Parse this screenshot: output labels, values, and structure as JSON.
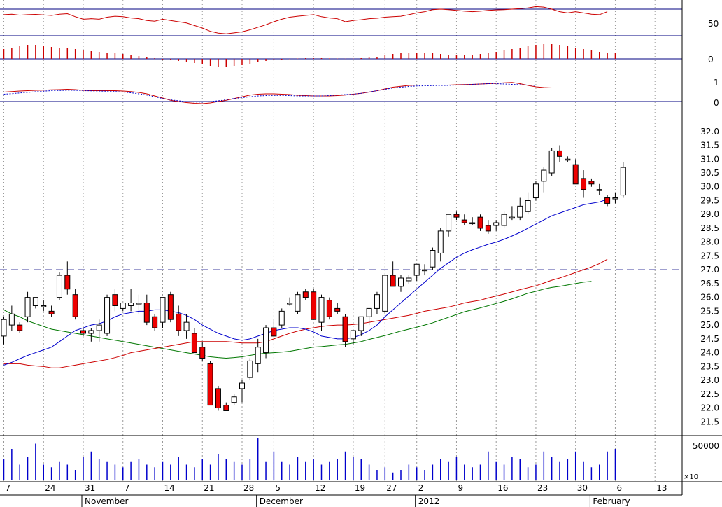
{
  "chart_data": {
    "type": "candlestick",
    "title": "",
    "colors": {
      "up_fill": "#ffffff",
      "down_fill": "#ee0000",
      "candle_outline": "#000000",
      "ma_short": "#0000cc",
      "ma_mid": "#cc0000",
      "ma_long": "#007700",
      "volume": "#0000cc",
      "indicator_line": "#cc0000",
      "panel_border": "#000080",
      "grid": "#999999"
    },
    "x_axis": {
      "day_labels": [
        {
          "i": 0,
          "label": "7"
        },
        {
          "i": 5,
          "label": "24"
        },
        {
          "i": 10,
          "label": "31"
        },
        {
          "i": 15,
          "label": "7"
        },
        {
          "i": 20,
          "label": "14"
        },
        {
          "i": 25,
          "label": "21"
        },
        {
          "i": 30,
          "label": "28"
        },
        {
          "i": 34,
          "label": "5"
        },
        {
          "i": 39,
          "label": "12"
        },
        {
          "i": 44,
          "label": "19"
        },
        {
          "i": 48,
          "label": "27"
        },
        {
          "i": 52,
          "label": "2"
        },
        {
          "i": 57,
          "label": "9"
        },
        {
          "i": 62,
          "label": "16"
        },
        {
          "i": 67,
          "label": "23"
        },
        {
          "i": 72,
          "label": "30"
        },
        {
          "i": 77,
          "label": "6"
        },
        {
          "i": 82,
          "label": "13"
        }
      ],
      "month_labels": [
        {
          "i": 10,
          "label": "November"
        },
        {
          "i": 32,
          "label": "December"
        },
        {
          "i": 52,
          "label": "2012"
        },
        {
          "i": 74,
          "label": "February"
        }
      ]
    },
    "price_panel": {
      "ylim": [
        21.0,
        32.4
      ],
      "y_ticks": [
        "32.0",
        "31.5",
        "31.0",
        "30.5",
        "30.0",
        "29.5",
        "29.0",
        "28.5",
        "28.0",
        "27.5",
        "27.0",
        "26.5",
        "26.0",
        "25.5",
        "25.0",
        "24.5",
        "24.0",
        "23.5",
        "23.0",
        "22.5",
        "22.0",
        "21.5"
      ],
      "reference_level": 27.0,
      "candles": [
        [
          24.6,
          25.3,
          24.3,
          25.2
        ],
        [
          25.0,
          25.7,
          24.8,
          25.4
        ],
        [
          25.0,
          25.1,
          24.7,
          24.8
        ],
        [
          25.3,
          26.2,
          25.1,
          26.0
        ],
        [
          25.7,
          26.0,
          25.6,
          26.0
        ],
        [
          25.7,
          25.9,
          25.5,
          25.7
        ],
        [
          25.5,
          25.7,
          25.3,
          25.4
        ],
        [
          26.0,
          26.9,
          25.9,
          26.8
        ],
        [
          26.8,
          27.3,
          26.1,
          26.3
        ],
        [
          26.1,
          26.3,
          25.2,
          25.3
        ],
        [
          24.8,
          24.9,
          24.6,
          24.7
        ],
        [
          24.7,
          24.9,
          24.4,
          24.8
        ],
        [
          24.8,
          25.2,
          24.4,
          25.0
        ],
        [
          24.7,
          26.1,
          24.6,
          26.0
        ],
        [
          26.1,
          26.3,
          25.5,
          25.7
        ],
        [
          25.6,
          25.8,
          25.5,
          25.8
        ],
        [
          25.7,
          26.3,
          25.5,
          25.8
        ],
        [
          25.8,
          26.1,
          25.4,
          25.8
        ],
        [
          25.8,
          26.1,
          25.0,
          25.1
        ],
        [
          25.3,
          25.4,
          24.8,
          24.9
        ],
        [
          25.1,
          26.0,
          24.9,
          26.0
        ],
        [
          26.1,
          26.2,
          25.1,
          25.2
        ],
        [
          25.4,
          25.7,
          24.6,
          24.8
        ],
        [
          24.8,
          25.4,
          24.5,
          25.1
        ],
        [
          24.7,
          24.9,
          24.0,
          24.0
        ],
        [
          24.2,
          24.4,
          23.7,
          23.8
        ],
        [
          23.6,
          23.7,
          22.1,
          22.1
        ],
        [
          22.7,
          22.8,
          21.9,
          22.0
        ],
        [
          22.1,
          22.2,
          21.9,
          21.9
        ],
        [
          22.2,
          22.5,
          22.1,
          22.4
        ],
        [
          22.7,
          23.0,
          22.2,
          22.9
        ],
        [
          23.1,
          23.8,
          23.0,
          23.7
        ],
        [
          23.6,
          24.5,
          23.3,
          24.2
        ],
        [
          24.0,
          25.0,
          23.8,
          24.9
        ],
        [
          24.9,
          25.2,
          24.6,
          24.6
        ],
        [
          25.0,
          25.6,
          24.9,
          25.5
        ],
        [
          25.8,
          26.0,
          25.7,
          25.8
        ],
        [
          25.5,
          26.2,
          25.4,
          26.1
        ],
        [
          26.2,
          26.3,
          25.9,
          26.0
        ],
        [
          26.2,
          26.3,
          25.2,
          25.2
        ],
        [
          25.1,
          26.1,
          24.8,
          26.0
        ],
        [
          25.9,
          26.0,
          25.2,
          25.3
        ],
        [
          25.6,
          25.8,
          25.4,
          25.5
        ],
        [
          25.3,
          25.4,
          24.2,
          24.4
        ],
        [
          24.5,
          24.8,
          24.3,
          24.8
        ],
        [
          24.8,
          25.3,
          24.6,
          25.3
        ],
        [
          25.3,
          25.6,
          25.0,
          25.6
        ],
        [
          25.6,
          26.2,
          25.4,
          26.1
        ],
        [
          25.5,
          26.8,
          25.4,
          26.8
        ],
        [
          26.8,
          27.3,
          26.4,
          26.4
        ],
        [
          26.4,
          26.8,
          26.2,
          26.7
        ],
        [
          26.6,
          26.8,
          26.5,
          26.7
        ],
        [
          26.8,
          27.2,
          26.6,
          27.2
        ],
        [
          27.0,
          27.2,
          26.8,
          27.0
        ],
        [
          27.1,
          27.8,
          27.0,
          27.7
        ],
        [
          27.6,
          28.5,
          27.3,
          28.4
        ],
        [
          28.4,
          29.0,
          28.2,
          29.0
        ],
        [
          29.0,
          29.1,
          28.8,
          28.9
        ],
        [
          28.8,
          29.0,
          28.6,
          28.7
        ],
        [
          28.7,
          28.9,
          28.6,
          28.7
        ],
        [
          28.9,
          29.0,
          28.4,
          28.5
        ],
        [
          28.6,
          28.8,
          28.3,
          28.4
        ],
        [
          28.6,
          28.8,
          28.4,
          28.7
        ],
        [
          28.6,
          29.1,
          28.5,
          29.0
        ],
        [
          28.9,
          29.3,
          28.8,
          28.9
        ],
        [
          28.9,
          29.6,
          28.8,
          29.3
        ],
        [
          29.1,
          29.8,
          29.0,
          29.5
        ],
        [
          29.6,
          30.2,
          29.5,
          30.1
        ],
        [
          30.2,
          30.7,
          29.8,
          30.6
        ],
        [
          30.5,
          31.4,
          30.4,
          31.3
        ],
        [
          31.3,
          31.5,
          30.9,
          31.1
        ],
        [
          31.0,
          31.1,
          30.9,
          31.0
        ],
        [
          30.8,
          31.0,
          30.1,
          30.1
        ],
        [
          30.3,
          30.6,
          29.6,
          29.9
        ],
        [
          30.2,
          30.3,
          30.0,
          30.1
        ],
        [
          29.9,
          30.1,
          29.7,
          29.9
        ],
        [
          29.6,
          29.7,
          29.3,
          29.4
        ],
        [
          29.6,
          29.8,
          29.4,
          29.6
        ],
        [
          29.7,
          30.9,
          29.6,
          30.7
        ]
      ],
      "ma_short": [
        23.55,
        23.65,
        23.78,
        23.9,
        24.0,
        24.1,
        24.2,
        24.4,
        24.6,
        24.8,
        24.9,
        25.0,
        25.05,
        25.15,
        25.3,
        25.4,
        25.45,
        25.5,
        25.5,
        25.55,
        25.55,
        25.5,
        25.45,
        25.35,
        25.2,
        25.0,
        24.85,
        24.7,
        24.6,
        24.5,
        24.45,
        24.5,
        24.6,
        24.7,
        24.8,
        24.85,
        24.9,
        24.9,
        24.85,
        24.75,
        24.6,
        24.55,
        24.5,
        24.5,
        24.55,
        24.65,
        24.8,
        25.0,
        25.3,
        25.55,
        25.8,
        26.05,
        26.3,
        26.55,
        26.8,
        27.05,
        27.25,
        27.45,
        27.6,
        27.72,
        27.82,
        27.92,
        28.0,
        28.1,
        28.22,
        28.35,
        28.5,
        28.65,
        28.8,
        28.95,
        29.05,
        29.15,
        29.25,
        29.35,
        29.4,
        29.45,
        29.55
      ],
      "ma_mid": [
        23.6,
        23.6,
        23.6,
        23.55,
        23.52,
        23.5,
        23.45,
        23.45,
        23.5,
        23.55,
        23.6,
        23.65,
        23.7,
        23.75,
        23.82,
        23.9,
        24.0,
        24.05,
        24.1,
        24.15,
        24.2,
        24.25,
        24.3,
        24.35,
        24.4,
        24.4,
        24.4,
        24.4,
        24.4,
        24.38,
        24.35,
        24.35,
        24.35,
        24.4,
        24.5,
        24.6,
        24.7,
        24.78,
        24.85,
        24.9,
        24.95,
        24.98,
        25.0,
        25.0,
        25.02,
        25.05,
        25.1,
        25.15,
        25.2,
        25.25,
        25.3,
        25.35,
        25.42,
        25.5,
        25.55,
        25.6,
        25.65,
        25.72,
        25.8,
        25.85,
        25.9,
        25.98,
        26.05,
        26.12,
        26.2,
        26.28,
        26.35,
        26.42,
        26.52,
        26.62,
        26.7,
        26.8,
        26.9,
        27.0,
        27.1,
        27.22,
        27.38
      ],
      "ma_long": [
        25.55,
        25.4,
        25.3,
        25.15,
        25.05,
        24.95,
        24.85,
        24.8,
        24.75,
        24.7,
        24.65,
        24.6,
        24.55,
        24.5,
        24.45,
        24.4,
        24.35,
        24.3,
        24.25,
        24.2,
        24.15,
        24.1,
        24.05,
        24.0,
        23.95,
        23.9,
        23.85,
        23.82,
        23.8,
        23.82,
        23.85,
        23.9,
        23.95,
        23.98,
        24.0,
        24.02,
        24.05,
        24.1,
        24.15,
        24.2,
        24.22,
        24.25,
        24.28,
        24.3,
        24.35,
        24.4,
        24.48,
        24.55,
        24.62,
        24.7,
        24.78,
        24.85,
        24.92,
        25.0,
        25.08,
        25.18,
        25.28,
        25.38,
        25.48,
        25.55,
        25.62,
        25.7,
        25.78,
        25.86,
        25.95,
        26.05,
        26.15,
        26.22,
        26.3,
        26.36,
        26.4,
        26.45,
        26.5,
        26.55,
        26.58
      ]
    },
    "volume_panel": {
      "y_label": "50000",
      "multiplier_label": "×10",
      "values": [
        40,
        60,
        30,
        45,
        70,
        30,
        25,
        35,
        30,
        20,
        45,
        55,
        40,
        35,
        30,
        25,
        35,
        40,
        30,
        25,
        35,
        30,
        45,
        30,
        25,
        40,
        30,
        50,
        40,
        35,
        30,
        40,
        80,
        35,
        55,
        35,
        30,
        45,
        35,
        40,
        30,
        35,
        40,
        55,
        45,
        40,
        30,
        20,
        25,
        15,
        20,
        30,
        25,
        20,
        30,
        40,
        35,
        45,
        30,
        25,
        30,
        55,
        35,
        30,
        45,
        40,
        25,
        30,
        55,
        45,
        35,
        40,
        55,
        35,
        25,
        30,
        55,
        60
      ]
    },
    "oscillator_panel": {
      "y_label": "50",
      "values": [
        0.78,
        0.8,
        0.76,
        0.78,
        0.79,
        0.77,
        0.75,
        0.8,
        0.82,
        0.7,
        0.6,
        0.62,
        0.6,
        0.68,
        0.72,
        0.7,
        0.65,
        0.62,
        0.55,
        0.52,
        0.6,
        0.55,
        0.5,
        0.45,
        0.35,
        0.25,
        0.12,
        0.05,
        0.02,
        0.06,
        0.1,
        0.18,
        0.28,
        0.38,
        0.5,
        0.6,
        0.68,
        0.72,
        0.75,
        0.78,
        0.7,
        0.65,
        0.62,
        0.5,
        0.55,
        0.58,
        0.62,
        0.64,
        0.68,
        0.7,
        0.72,
        0.78,
        0.85,
        0.9,
        0.98,
        1.0,
        0.98,
        0.95,
        0.92,
        0.9,
        0.92,
        0.95,
        0.97,
        0.98,
        1.0,
        1.02,
        1.05,
        1.1,
        1.08,
        1.0,
        0.9,
        0.85,
        0.9,
        0.85,
        0.8,
        0.78,
        0.9
      ]
    },
    "histogram_panel": {
      "y_label": "0",
      "values": [
        0.7,
        0.8,
        0.9,
        1.0,
        1.0,
        0.9,
        0.85,
        0.8,
        0.75,
        0.7,
        0.6,
        0.55,
        0.5,
        0.45,
        0.4,
        0.35,
        0.3,
        0.2,
        0.1,
        0.05,
        -0.05,
        -0.1,
        -0.15,
        -0.2,
        -0.3,
        -0.4,
        -0.5,
        -0.6,
        -0.55,
        -0.5,
        -0.45,
        -0.35,
        -0.25,
        -0.15,
        -0.08,
        -0.05,
        -0.02,
        0.02,
        0.05,
        0.05,
        0.05,
        0.03,
        0.02,
        0.01,
        0.02,
        0.05,
        0.1,
        0.15,
        0.25,
        0.35,
        0.4,
        0.45,
        0.45,
        0.45,
        0.4,
        0.35,
        0.3,
        0.3,
        0.3,
        0.3,
        0.35,
        0.4,
        0.5,
        0.6,
        0.7,
        0.8,
        0.9,
        1.0,
        1.05,
        1.05,
        1.0,
        0.9,
        0.8,
        0.7,
        0.6,
        0.5,
        0.45,
        0.4
      ]
    },
    "macd_panel": {
      "y_labels": [
        "1",
        "0"
      ],
      "line": [
        0.42,
        0.45,
        0.48,
        0.5,
        0.52,
        0.53,
        0.55,
        0.56,
        0.58,
        0.56,
        0.52,
        0.5,
        0.5,
        0.5,
        0.5,
        0.48,
        0.45,
        0.4,
        0.32,
        0.2,
        0.08,
        -0.05,
        -0.12,
        -0.18,
        -0.22,
        -0.24,
        -0.2,
        -0.12,
        -0.05,
        0.05,
        0.15,
        0.25,
        0.3,
        0.32,
        0.32,
        0.3,
        0.28,
        0.24,
        0.22,
        0.2,
        0.2,
        0.2,
        0.22,
        0.25,
        0.3,
        0.35,
        0.42,
        0.5,
        0.6,
        0.7,
        0.75,
        0.8,
        0.82,
        0.82,
        0.82,
        0.82,
        0.82,
        0.84,
        0.85,
        0.86,
        0.88,
        0.9,
        0.92,
        0.95,
        0.97,
        0.9,
        0.8,
        0.72,
        0.68,
        0.66
      ],
      "signal": [
        0.3,
        0.33,
        0.37,
        0.4,
        0.44,
        0.47,
        0.5,
        0.51,
        0.52,
        0.52,
        0.5,
        0.49,
        0.48,
        0.47,
        0.45,
        0.42,
        0.38,
        0.32,
        0.25,
        0.15,
        0.05,
        -0.02,
        -0.08,
        -0.12,
        -0.15,
        -0.15,
        -0.12,
        -0.08,
        -0.02,
        0.05,
        0.1,
        0.15,
        0.2,
        0.22,
        0.23,
        0.23,
        0.22,
        0.2,
        0.2,
        0.2,
        0.2,
        0.22,
        0.25,
        0.28,
        0.3,
        0.35,
        0.42,
        0.5,
        0.58,
        0.65,
        0.7,
        0.74,
        0.77,
        0.78,
        0.79,
        0.8,
        0.8,
        0.82,
        0.84,
        0.86,
        0.88,
        0.9,
        0.9,
        0.88,
        0.86,
        0.84,
        0.82,
        0.8
      ]
    }
  }
}
